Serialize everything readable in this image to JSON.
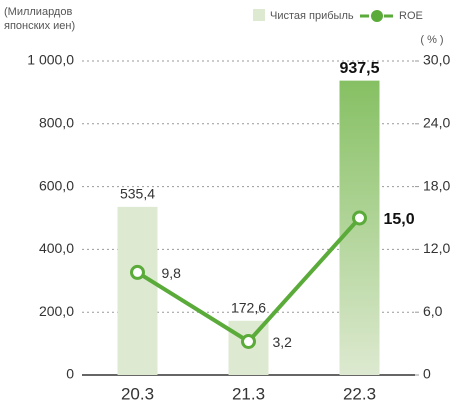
{
  "chart_data": {
    "type": "bar_line",
    "y_label": [
      "(Миллиардов",
      "японских иен)"
    ],
    "y2_label": "( % )",
    "categories": [
      "20.3",
      "21.3",
      "22.3"
    ],
    "series": [
      {
        "name": "Чистая прибыль",
        "type": "bar",
        "colors": [
          "#dde9d0",
          "#dde9d0",
          "#86c063"
        ],
        "values": [
          535.4,
          172.6,
          937.5
        ],
        "value_labels": [
          "535,4",
          "172,6",
          "937,5"
        ]
      },
      {
        "name": "ROE",
        "type": "line",
        "axis": "y2",
        "color": "#5aab3a",
        "values": [
          9.8,
          3.2,
          15.0
        ],
        "value_labels": [
          "9,8",
          "3,2",
          "15,0"
        ]
      }
    ],
    "ylim": [
      0,
      1000
    ],
    "yticks": [
      0,
      {
        "value": 200,
        "label": "200,0"
      },
      {
        "value": 400,
        "label": "400,0"
      },
      {
        "value": 600,
        "label": "600,0"
      },
      {
        "value": 800,
        "label": "800,0"
      },
      {
        "value": 1000,
        "label": "1 000,0"
      }
    ],
    "y2lim": [
      0,
      30
    ],
    "y2ticks": [
      0,
      {
        "value": 6,
        "label": "6,0"
      },
      {
        "value": 12,
        "label": "12,0"
      },
      {
        "value": 18,
        "label": "18,0"
      },
      {
        "value": 24,
        "label": "24,0"
      },
      {
        "value": 30,
        "label": "30,0"
      }
    ],
    "grid": true
  }
}
